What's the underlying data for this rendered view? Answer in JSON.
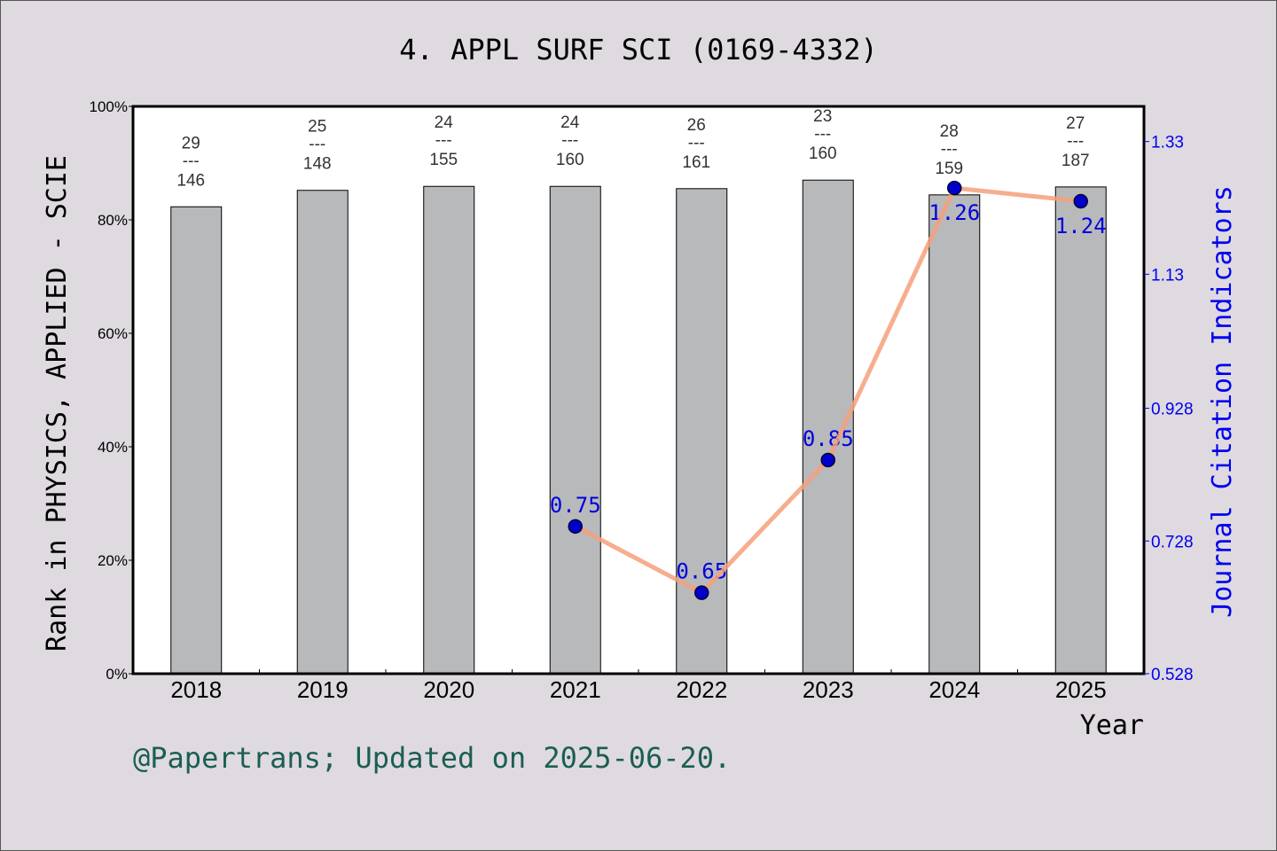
{
  "chart_data": {
    "type": "bar+line",
    "title": "4. APPL SURF SCI (0169-4332)",
    "xlabel": "Year",
    "ylabel": "Rank in PHYSICS, APPLIED - SCIE",
    "y2label": "Journal Citation Indicators",
    "categories": [
      "2018",
      "2019",
      "2020",
      "2021",
      "2022",
      "2023",
      "2024",
      "2025"
    ],
    "ylim": [
      0,
      100
    ],
    "yticks": [
      "0%",
      "20%",
      "40%",
      "60%",
      "80%",
      "100%"
    ],
    "y2lim": [
      0.528,
      1.383
    ],
    "y2ticks": [
      "0.528",
      "0.728",
      "0.928",
      "1.13",
      "1.33"
    ],
    "bars": {
      "values": [
        82.3,
        85.2,
        85.9,
        85.9,
        85.5,
        87.0,
        84.4,
        85.8
      ],
      "rank": [
        "29",
        "25",
        "24",
        "24",
        "26",
        "23",
        "28",
        "27"
      ],
      "total": [
        "146",
        "148",
        "155",
        "160",
        "161",
        "160",
        "159",
        "187"
      ],
      "separator": "---",
      "color": "#b8b9bb"
    },
    "line": {
      "values": [
        null,
        null,
        null,
        0.75,
        0.65,
        0.85,
        1.26,
        1.24
      ],
      "labels": [
        "",
        "",
        "",
        "0.75",
        "0.65",
        "0.85",
        "1.26",
        "1.24"
      ],
      "color": "#f4a07a",
      "marker_color": "#0000cc"
    },
    "grid": false
  },
  "footer": "@Papertrans; Updated on 2025-06-20."
}
